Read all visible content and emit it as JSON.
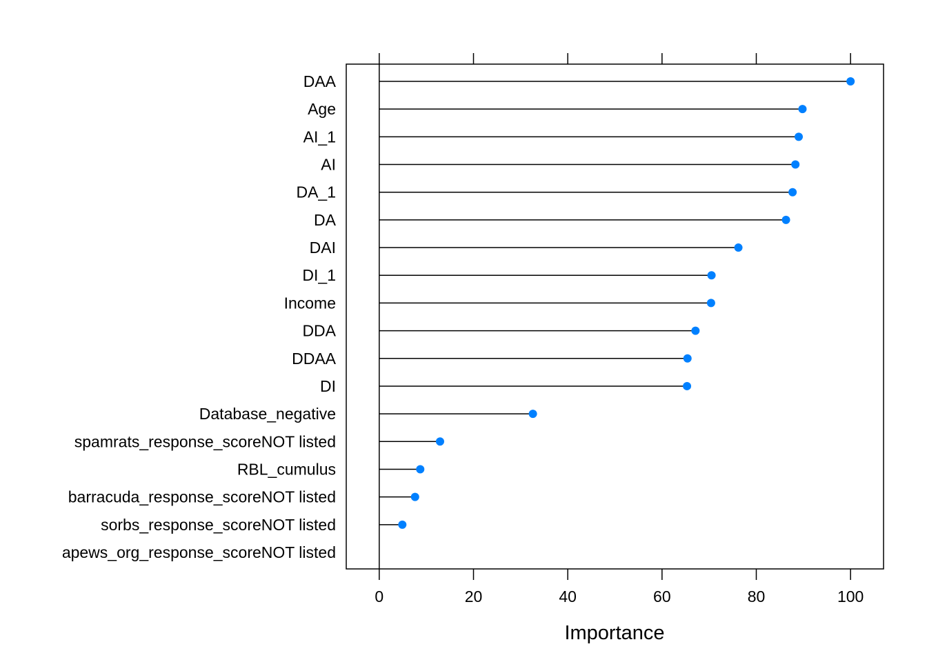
{
  "chart_data": {
    "type": "dot",
    "title": "",
    "xlabel": "Importance",
    "ylabel": "",
    "xlim": [
      -7,
      107
    ],
    "xticks": [
      0,
      20,
      40,
      60,
      80,
      100
    ],
    "grid": false,
    "legend": "none",
    "colors": {
      "point": "#0080ff",
      "stem": "#000000",
      "frame": "#000000"
    },
    "categories": [
      "DAA",
      "Age",
      "AI_1",
      "AI",
      "DA_1",
      "DA",
      "DAI",
      "DI_1",
      "Income",
      "DDA",
      "DDAA",
      "DI",
      "Database_negative",
      "spamrats_response_scoreNOT listed",
      "RBL_cumulus",
      "barracuda_response_scoreNOT listed",
      "sorbs_response_scoreNOT listed",
      "apews_org_response_scoreNOT listed"
    ],
    "values": [
      100,
      89.8,
      89.0,
      88.3,
      87.7,
      86.3,
      76.2,
      70.5,
      70.4,
      67.1,
      65.4,
      65.3,
      32.6,
      12.9,
      8.7,
      7.6,
      4.9,
      0
    ]
  }
}
